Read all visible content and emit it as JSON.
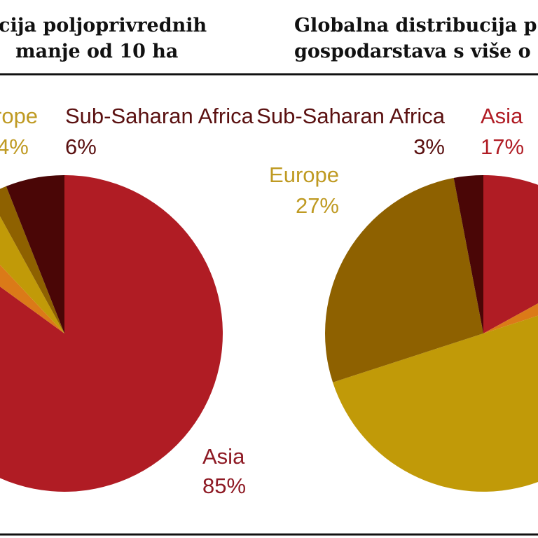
{
  "colors": {
    "asia": "#b01c24",
    "europe": "#c19a08",
    "sub_saharan_africa": "#4a0606",
    "dark_gold": "#8e6100",
    "orange": "#db7a18",
    "label_dark": "#5a1010",
    "label_gold": "#bf9a22",
    "rule": "#111111"
  },
  "titles": {
    "left_line1": "cija poljoprivrednih",
    "left_line2": "manje od 10 ha",
    "right_line1": "Globalna distribucija p",
    "right_line2": "gospodarstava s više o"
  },
  "chart_data": [
    {
      "type": "pie",
      "title": "… cija poljoprivrednih … manje od 10 ha",
      "slices": [
        {
          "label": "Asia",
          "value": 85,
          "value_label": "85%",
          "color": "#b01c24"
        },
        {
          "label": "",
          "value": 3,
          "value_label": "",
          "color": "#db7a18"
        },
        {
          "label": "Europe",
          "value": 4,
          "value_label": "4%",
          "color": "#c19a08"
        },
        {
          "label": "",
          "value": 2,
          "value_label": "",
          "color": "#8e6100"
        },
        {
          "label": "Sub-Saharan Africa",
          "value": 6,
          "value_label": "6%",
          "color": "#4a0606"
        }
      ]
    },
    {
      "type": "pie",
      "title": "Globalna distribucija p… gospodarstava s više o…",
      "slices": [
        {
          "label": "Asia",
          "value": 17,
          "value_label": "17%",
          "color": "#b01c24"
        },
        {
          "label": "",
          "value": 3,
          "value_label": "",
          "color": "#db7a18"
        },
        {
          "label": "",
          "value": 50,
          "value_label": "",
          "color": "#c19a08"
        },
        {
          "label": "Europe",
          "value": 27,
          "value_label": "27%",
          "color": "#8e6100"
        },
        {
          "label": "Sub-Saharan Africa",
          "value": 3,
          "value_label": "3%",
          "color": "#4a0606"
        }
      ]
    }
  ],
  "labels": {
    "left_europe": "rope",
    "left_europe_pct": "4%",
    "left_ssa": "Sub-Saharan Africa",
    "left_ssa_pct": "6%",
    "left_asia": "Asia",
    "left_asia_pct": "85%",
    "right_ssa": "Sub-Saharan Africa",
    "right_ssa_pct": "3%",
    "right_asia": "Asia",
    "right_asia_pct": "17%",
    "right_europe": "Europe",
    "right_europe_pct": "27%"
  }
}
